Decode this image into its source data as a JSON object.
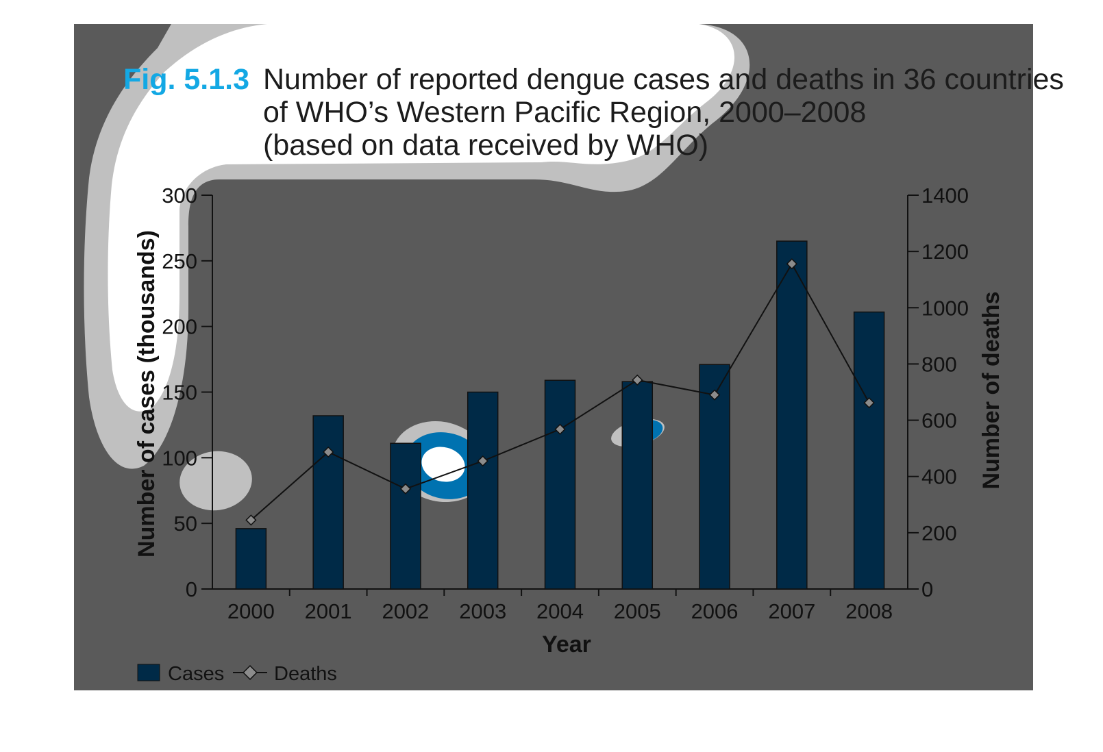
{
  "figure": {
    "label": "Fig. 5.1.3",
    "title_lines": [
      "Number of reported dengue cases and deaths in 36 countries",
      "of WHO’s Western Pacific Region, 2000–2008",
      "(based on data received by WHO)"
    ]
  },
  "colors": {
    "background_panel": "#5a5a5a",
    "bars": "#002a47",
    "line": "#111111",
    "marker": "#8c8c8c",
    "fig_label": "#13a8e4",
    "smear_light": "#c0c0c0",
    "smear_blue": "#0072b0"
  },
  "chart_data": {
    "type": "bar",
    "categories": [
      "2000",
      "2001",
      "2002",
      "2003",
      "2004",
      "2005",
      "2006",
      "2007",
      "2008"
    ],
    "series": [
      {
        "name": "Cases",
        "type": "bar",
        "axis": "left",
        "values": [
          46,
          132,
          111,
          150,
          159,
          158,
          171,
          265,
          211
        ]
      },
      {
        "name": "Deaths",
        "type": "line",
        "axis": "right",
        "marker": "diamond",
        "values": [
          245,
          487,
          356,
          455,
          568,
          743,
          690,
          1156,
          662
        ]
      }
    ],
    "xlabel": "Year",
    "ylabel_left": "Number of cases (thousands)",
    "ylabel_right": "Number of deaths",
    "ylim_left": [
      0,
      300
    ],
    "yticks_left": [
      "0",
      "50",
      "100",
      "150",
      "200",
      "250",
      "300"
    ],
    "ylim_right": [
      0,
      1400
    ],
    "yticks_right": [
      "0",
      "200",
      "400",
      "600",
      "800",
      "1000",
      "1200",
      "1400"
    ],
    "grid": false,
    "legend_position": "bottom-left",
    "legend": [
      {
        "label": "Cases",
        "kind": "bar"
      },
      {
        "label": "Deaths",
        "kind": "line-diamond"
      }
    ]
  }
}
